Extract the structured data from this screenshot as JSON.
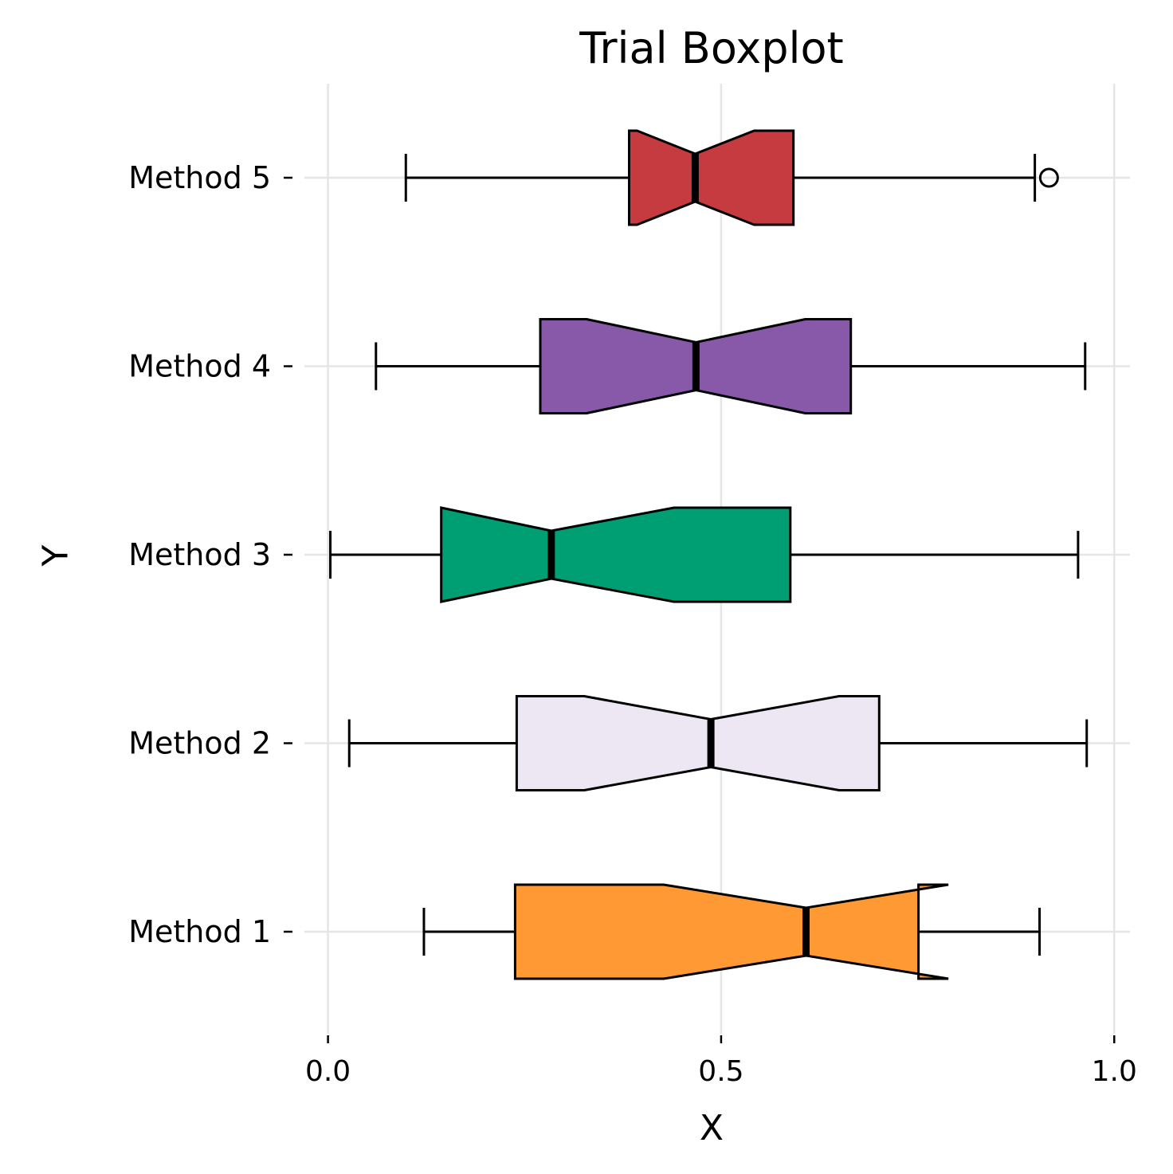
{
  "chart_data": {
    "type": "boxplot",
    "orientation": "horizontal",
    "notched": true,
    "title": "Trial Boxplot",
    "xlabel": "X",
    "ylabel": "Y",
    "xlim": [
      -0.03,
      1.02
    ],
    "xticks": [
      0.0,
      0.5,
      1.0
    ],
    "xtick_labels": [
      "0.0",
      "0.5",
      "1.0"
    ],
    "grid": true,
    "categories": [
      "Method 1",
      "Method 2",
      "Method 3",
      "Method 4",
      "Method 5"
    ],
    "series": [
      {
        "label": "Method 1",
        "color": "#FF9933",
        "whisker_low": 0.122,
        "q1": 0.238,
        "median": 0.608,
        "q3": 0.751,
        "whisker_high": 0.905,
        "notch_low": 0.427,
        "notch_high": 0.789,
        "outliers": []
      },
      {
        "label": "Method 2",
        "color": "#ECE7F2",
        "whisker_low": 0.027,
        "q1": 0.24,
        "median": 0.487,
        "q3": 0.701,
        "whisker_high": 0.965,
        "notch_low": 0.326,
        "notch_high": 0.65,
        "outliers": []
      },
      {
        "label": "Method 3",
        "color": "#009E73",
        "whisker_low": 0.003,
        "q1": 0.144,
        "median": 0.284,
        "q3": 0.588,
        "whisker_high": 0.954,
        "notch_low": 0.144,
        "notch_high": 0.44,
        "outliers": []
      },
      {
        "label": "Method 4",
        "color": "#8859A8",
        "whisker_low": 0.061,
        "q1": 0.27,
        "median": 0.468,
        "q3": 0.665,
        "whisker_high": 0.963,
        "notch_low": 0.329,
        "notch_high": 0.607,
        "outliers": []
      },
      {
        "label": "Method 5",
        "color": "#C53B3F",
        "whisker_low": 0.099,
        "q1": 0.383,
        "median": 0.467,
        "q3": 0.592,
        "whisker_high": 0.899,
        "notch_low": 0.393,
        "notch_high": 0.542,
        "outliers": [
          0.917
        ]
      }
    ]
  }
}
